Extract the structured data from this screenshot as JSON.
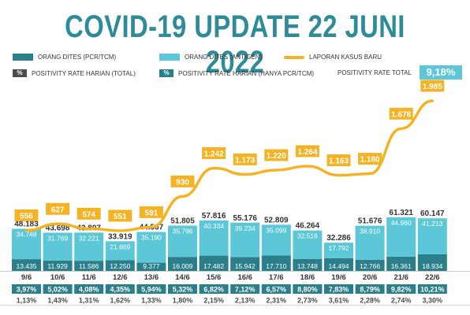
{
  "title": "COVID-19 UPDATE 22 JUNI 2022",
  "legend": {
    "pcr": "ORANG DITES (PCR/TCM)",
    "antigen": "ORANG DITES (ANTIGEN)",
    "cases": "LAPORAN KASUS BARU",
    "pr_total": "POSITIVITY RATE HARIAN (TOTAL)",
    "pr_pcr": "POSITIVITY RATE HARIAN (HANYA PCR/TCM)",
    "pr_total_overall_label": "POSITIVITY RATE TOTAL",
    "pr_total_overall_value": "9,18%",
    "pct_symbol": "%"
  },
  "colors": {
    "title": "#2e8c98",
    "pcr": "#2b7f8b",
    "antigen": "#5cc7d6",
    "line": "#f4b324",
    "pr_total": "#4d4d4d",
    "pr_pcr": "#2b7f8b",
    "badge": "#5cc7d6"
  },
  "chart_data": {
    "type": "bar",
    "categories": [
      "9/6",
      "10/6",
      "11/6",
      "12/6",
      "13/6",
      "14/6",
      "15/6",
      "16/6",
      "17/6",
      "18/6",
      "19/6",
      "20/6",
      "21/6",
      "22/6"
    ],
    "series": [
      {
        "name": "ORANG DITES (PCR/TCM)",
        "values": [
          "13.435",
          "11.929",
          "11.586",
          "12.250",
          "9.377",
          "16.009",
          "17.482",
          "15.942",
          "17.710",
          "13.748",
          "14.494",
          "12.766",
          "16.361",
          "18.934"
        ]
      },
      {
        "name": "ORANG DITES (ANTIGEN)",
        "values": [
          "34.748",
          "31.769",
          "32.221",
          "21.669",
          "35.190",
          "35.796",
          "40.334",
          "39.234",
          "35.099",
          "32.516",
          "17.792",
          "38.910",
          "44.960",
          "41.213"
        ]
      },
      {
        "name": "LAPORAN KASUS BARU",
        "values": [
          "556",
          "627",
          "574",
          "551",
          "591",
          "930",
          "1.242",
          "1.173",
          "1.220",
          "1.264",
          "1.163",
          "1.180",
          "1.678",
          "1.985"
        ]
      }
    ],
    "totals": [
      "48.183",
      "43.698",
      "43.807",
      "33.919",
      "44.567",
      "51.805",
      "57.816",
      "55.176",
      "52.809",
      "46.264",
      "32.286",
      "51.676",
      "61.321",
      "60.147"
    ],
    "positivity_rate_pcr": [
      "3,97%",
      "5,02%",
      "4,08%",
      "4,35%",
      "5,94%",
      "5,32%",
      "6,82%",
      "7,12%",
      "6,57%",
      "8,80%",
      "7,83%",
      "8,79%",
      "9,82%",
      "10,21%"
    ],
    "positivity_rate_total": [
      "1,13%",
      "1,43%",
      "1,31%",
      "1,62%",
      "1,33%",
      "1,80%",
      "2,15%",
      "2,13%",
      "2,31%",
      "2,73%",
      "3,61%",
      "2,28%",
      "2,74%",
      "3,30%"
    ]
  }
}
